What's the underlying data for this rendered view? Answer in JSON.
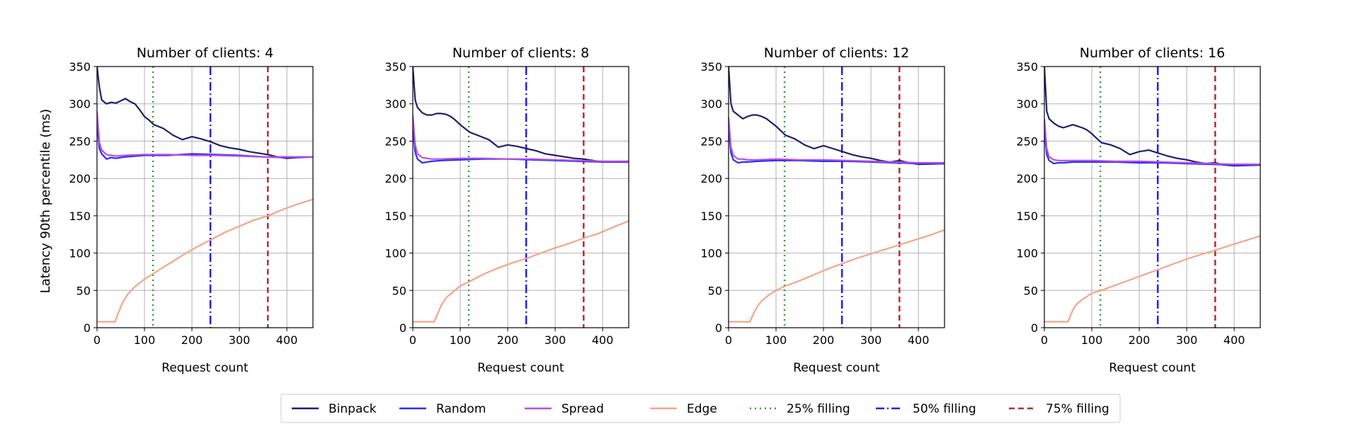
{
  "figure": {
    "ylabel": "Latency 90th percentile (ms)",
    "xlabel": "Request count"
  },
  "legend": {
    "placement": "bottom-center",
    "entries": [
      {
        "label": "Binpack",
        "style": "solid",
        "color": "#1f1f6e"
      },
      {
        "label": "Random",
        "style": "solid",
        "color": "#2b2bff"
      },
      {
        "label": "Spread",
        "style": "solid",
        "color": "#b44fe0"
      },
      {
        "label": "Edge",
        "style": "solid",
        "color": "#f4a58a"
      },
      {
        "label": "25% filling",
        "style": "dotted",
        "color": "#2ca02c"
      },
      {
        "label": "50% filling",
        "style": "dashdot",
        "color": "#2020ee"
      },
      {
        "label": "75% filling",
        "style": "dashed",
        "color": "#a83232"
      }
    ]
  },
  "chart_data": [
    {
      "type": "line",
      "title": "Number of clients: 4",
      "xlabel": "Request count",
      "ylabel": "Latency 90th percentile (ms)",
      "xlim": [
        0,
        455
      ],
      "ylim": [
        0,
        350
      ],
      "xticks": [
        0,
        100,
        200,
        300,
        400
      ],
      "yticks": [
        0,
        50,
        100,
        150,
        200,
        250,
        300,
        350
      ],
      "grid": true,
      "vlines": [
        {
          "name": "25% filling",
          "x": 118
        },
        {
          "name": "50% filling",
          "x": 239
        },
        {
          "name": "75% filling",
          "x": 360
        }
      ],
      "series": [
        {
          "name": "Binpack",
          "x": [
            0,
            5,
            10,
            20,
            30,
            40,
            50,
            60,
            70,
            80,
            90,
            100,
            110,
            120,
            140,
            160,
            180,
            200,
            220,
            240,
            260,
            280,
            300,
            320,
            340,
            360,
            380,
            400,
            420,
            455
          ],
          "y": [
            350,
            322,
            305,
            300,
            302,
            301,
            304,
            307,
            303,
            300,
            292,
            283,
            278,
            272,
            267,
            258,
            252,
            256,
            253,
            249,
            244,
            241,
            239,
            236,
            234,
            232,
            229,
            227,
            228,
            229
          ]
        },
        {
          "name": "Random",
          "x": [
            0,
            5,
            10,
            20,
            30,
            40,
            60,
            100,
            150,
            200,
            250,
            300,
            350,
            400,
            455
          ],
          "y": [
            275,
            240,
            233,
            226,
            228,
            227,
            229,
            231,
            231,
            233,
            232,
            231,
            229,
            228,
            229
          ]
        },
        {
          "name": "Spread",
          "x": [
            0,
            5,
            10,
            20,
            30,
            40,
            60,
            100,
            150,
            200,
            250,
            300,
            350,
            400,
            455
          ],
          "y": [
            290,
            248,
            238,
            232,
            231,
            230,
            231,
            232,
            232,
            231,
            231,
            230,
            229,
            229,
            229
          ]
        },
        {
          "name": "Edge",
          "x": [
            0,
            38,
            45,
            55,
            65,
            80,
            100,
            120,
            150,
            180,
            210,
            240,
            270,
            300,
            330,
            360,
            390,
            420,
            455
          ],
          "y": [
            8,
            8,
            20,
            35,
            45,
            55,
            65,
            73,
            85,
            97,
            108,
            118,
            128,
            136,
            144,
            150,
            158,
            165,
            172
          ]
        }
      ]
    },
    {
      "type": "line",
      "title": "Number of clients: 8",
      "xlabel": "Request count",
      "ylabel": "",
      "xlim": [
        0,
        455
      ],
      "ylim": [
        0,
        350
      ],
      "xticks": [
        0,
        100,
        200,
        300,
        400
      ],
      "yticks": [
        0,
        50,
        100,
        150,
        200,
        250,
        300,
        350
      ],
      "grid": true,
      "vlines": [
        {
          "name": "25% filling",
          "x": 118
        },
        {
          "name": "50% filling",
          "x": 239
        },
        {
          "name": "75% filling",
          "x": 360
        }
      ],
      "series": [
        {
          "name": "Binpack",
          "x": [
            0,
            5,
            10,
            20,
            30,
            40,
            50,
            60,
            70,
            80,
            90,
            100,
            120,
            140,
            160,
            180,
            200,
            220,
            240,
            260,
            280,
            300,
            320,
            340,
            360,
            380,
            400,
            455
          ],
          "y": [
            350,
            305,
            295,
            288,
            285,
            285,
            287,
            287,
            286,
            283,
            278,
            272,
            262,
            257,
            252,
            242,
            245,
            243,
            240,
            237,
            233,
            231,
            229,
            227,
            226,
            224,
            222,
            223
          ]
        },
        {
          "name": "Random",
          "x": [
            0,
            5,
            10,
            20,
            30,
            40,
            60,
            100,
            150,
            200,
            250,
            300,
            350,
            400,
            455
          ],
          "y": [
            270,
            235,
            226,
            221,
            222,
            223,
            224,
            225,
            226,
            226,
            225,
            224,
            223,
            222,
            222
          ]
        },
        {
          "name": "Spread",
          "x": [
            0,
            5,
            10,
            20,
            30,
            40,
            60,
            100,
            150,
            200,
            250,
            300,
            350,
            400,
            455
          ],
          "y": [
            285,
            245,
            233,
            228,
            227,
            226,
            226,
            227,
            227,
            226,
            226,
            225,
            224,
            223,
            223
          ]
        },
        {
          "name": "Edge",
          "x": [
            0,
            45,
            52,
            60,
            70,
            85,
            100,
            120,
            150,
            180,
            210,
            240,
            270,
            300,
            330,
            360,
            390,
            420,
            455
          ],
          "y": [
            8,
            8,
            18,
            30,
            40,
            48,
            56,
            62,
            72,
            80,
            87,
            93,
            100,
            107,
            113,
            120,
            126,
            134,
            143
          ]
        }
      ]
    },
    {
      "type": "line",
      "title": "Number of clients: 12",
      "xlabel": "Request count",
      "ylabel": "",
      "xlim": [
        0,
        455
      ],
      "ylim": [
        0,
        350
      ],
      "xticks": [
        0,
        100,
        200,
        300,
        400
      ],
      "yticks": [
        0,
        50,
        100,
        150,
        200,
        250,
        300,
        350
      ],
      "grid": true,
      "vlines": [
        {
          "name": "25% filling",
          "x": 118
        },
        {
          "name": "50% filling",
          "x": 239
        },
        {
          "name": "75% filling",
          "x": 360
        }
      ],
      "series": [
        {
          "name": "Binpack",
          "x": [
            0,
            5,
            10,
            20,
            30,
            40,
            50,
            60,
            70,
            80,
            90,
            100,
            120,
            140,
            160,
            180,
            200,
            220,
            240,
            260,
            280,
            300,
            320,
            340,
            360,
            380,
            400,
            455
          ],
          "y": [
            350,
            300,
            290,
            285,
            280,
            283,
            285,
            285,
            283,
            280,
            275,
            270,
            258,
            253,
            245,
            240,
            244,
            240,
            236,
            232,
            229,
            227,
            224,
            222,
            224,
            221,
            219,
            220
          ]
        },
        {
          "name": "Random",
          "x": [
            0,
            5,
            10,
            20,
            30,
            40,
            60,
            100,
            150,
            200,
            250,
            300,
            350,
            400,
            455
          ],
          "y": [
            268,
            234,
            225,
            221,
            222,
            222,
            223,
            224,
            224,
            223,
            223,
            222,
            221,
            220,
            220
          ]
        },
        {
          "name": "Spread",
          "x": [
            0,
            5,
            10,
            20,
            30,
            40,
            60,
            100,
            150,
            200,
            250,
            300,
            350,
            400,
            455
          ],
          "y": [
            282,
            242,
            231,
            226,
            226,
            225,
            225,
            226,
            225,
            225,
            224,
            223,
            222,
            221,
            221
          ]
        },
        {
          "name": "Edge",
          "x": [
            0,
            45,
            52,
            60,
            70,
            85,
            100,
            120,
            150,
            180,
            210,
            240,
            270,
            300,
            330,
            360,
            390,
            420,
            455
          ],
          "y": [
            8,
            8,
            18,
            28,
            36,
            44,
            50,
            56,
            63,
            71,
            79,
            86,
            93,
            99,
            105,
            111,
            117,
            123,
            131
          ]
        }
      ]
    },
    {
      "type": "line",
      "title": "Number of clients: 16",
      "xlabel": "Request count",
      "ylabel": "",
      "xlim": [
        0,
        455
      ],
      "ylim": [
        0,
        350
      ],
      "xticks": [
        0,
        100,
        200,
        300,
        400
      ],
      "yticks": [
        0,
        50,
        100,
        150,
        200,
        250,
        300,
        350
      ],
      "grid": true,
      "vlines": [
        {
          "name": "25% filling",
          "x": 118
        },
        {
          "name": "50% filling",
          "x": 239
        },
        {
          "name": "75% filling",
          "x": 360
        }
      ],
      "series": [
        {
          "name": "Binpack",
          "x": [
            0,
            5,
            10,
            20,
            30,
            40,
            50,
            60,
            70,
            80,
            90,
            100,
            120,
            140,
            160,
            180,
            200,
            220,
            240,
            260,
            280,
            300,
            320,
            340,
            360,
            380,
            400,
            455
          ],
          "y": [
            350,
            290,
            280,
            274,
            270,
            268,
            270,
            272,
            270,
            268,
            265,
            260,
            248,
            245,
            240,
            232,
            236,
            238,
            234,
            230,
            227,
            225,
            222,
            220,
            221,
            218,
            217,
            218
          ]
        },
        {
          "name": "Random",
          "x": [
            0,
            5,
            10,
            20,
            30,
            40,
            60,
            100,
            150,
            200,
            250,
            300,
            350,
            400,
            455
          ],
          "y": [
            265,
            232,
            224,
            220,
            221,
            221,
            222,
            222,
            222,
            221,
            221,
            220,
            219,
            218,
            218
          ]
        },
        {
          "name": "Spread",
          "x": [
            0,
            5,
            10,
            20,
            30,
            40,
            60,
            100,
            150,
            200,
            250,
            300,
            350,
            400,
            455
          ],
          "y": [
            280,
            240,
            229,
            225,
            224,
            224,
            224,
            224,
            223,
            223,
            222,
            221,
            220,
            219,
            219
          ]
        },
        {
          "name": "Edge",
          "x": [
            0,
            50,
            56,
            62,
            70,
            85,
            100,
            120,
            150,
            180,
            210,
            240,
            270,
            300,
            330,
            360,
            390,
            420,
            455
          ],
          "y": [
            8,
            8,
            18,
            26,
            33,
            40,
            46,
            50,
            57,
            64,
            71,
            78,
            85,
            92,
            98,
            104,
            110,
            116,
            123
          ]
        }
      ]
    }
  ]
}
